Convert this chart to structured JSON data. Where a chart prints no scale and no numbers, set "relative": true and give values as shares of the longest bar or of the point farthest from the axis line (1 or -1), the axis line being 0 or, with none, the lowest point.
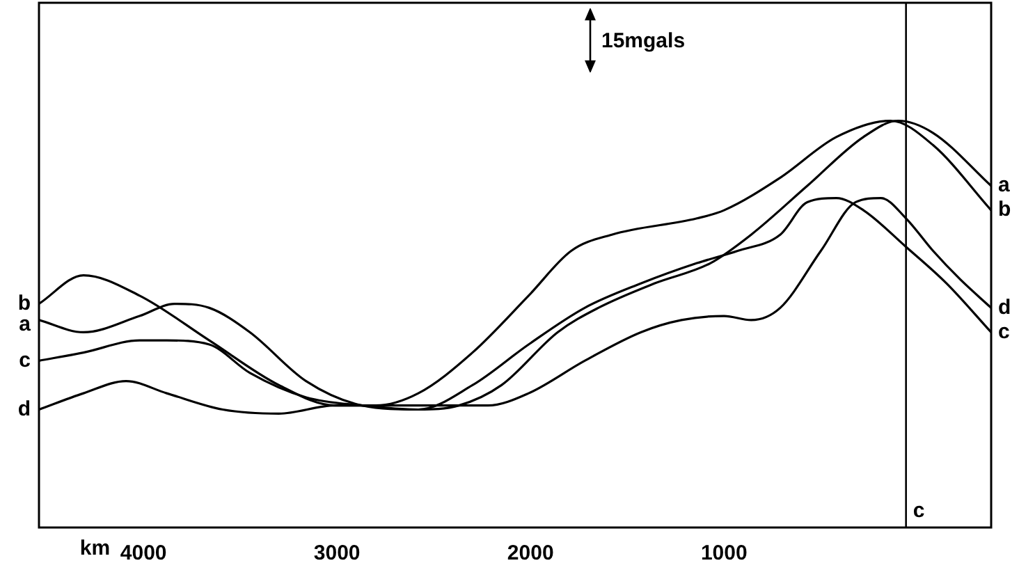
{
  "chart_data": {
    "type": "line",
    "relative": true,
    "xlabel": "km",
    "xlim": [
      4540,
      -380
    ],
    "xticks": [
      4000,
      3000,
      2000,
      1000
    ],
    "grid": false,
    "marker": "none",
    "line_style": "solid",
    "annotations": [
      "15mgals"
    ],
    "ref_lines": [
      {
        "axis": "x",
        "value": 60,
        "label": "c",
        "color": "#000000"
      }
    ],
    "series": [
      {
        "name": "a",
        "color": "#000000",
        "x": [
          4540,
          4310,
          4020,
          3840,
          3660,
          3450,
          3160,
          2870,
          2580,
          2370,
          2150,
          1860,
          1650,
          1360,
          1070,
          860,
          570,
          280,
          100,
          -80,
          -380
        ],
        "values": [
          0.51,
          0.48,
          0.52,
          0.55,
          0.54,
          0.48,
          0.36,
          0.3,
          0.29,
          0.3,
          0.35,
          0.48,
          0.54,
          0.6,
          0.65,
          0.72,
          0.84,
          0.96,
          1.0,
          0.97,
          0.84
        ]
      },
      {
        "name": "b",
        "color": "#000000",
        "x": [
          4540,
          4310,
          4020,
          3660,
          3300,
          3010,
          2800,
          2580,
          2300,
          2010,
          1790,
          1580,
          1140,
          1000,
          710,
          420,
          140,
          -80,
          -380
        ],
        "values": [
          0.55,
          0.62,
          0.57,
          0.46,
          0.35,
          0.3,
          0.3,
          0.33,
          0.43,
          0.57,
          0.68,
          0.72,
          0.76,
          0.78,
          0.86,
          0.96,
          1.0,
          0.94,
          0.78
        ]
      },
      {
        "name": "c",
        "color": "#000000",
        "x": [
          4540,
          4310,
          4020,
          3880,
          3660,
          3450,
          3160,
          2870,
          2580,
          2300,
          2010,
          1720,
          1430,
          1140,
          930,
          710,
          570,
          420,
          280,
          60,
          -150,
          -380
        ],
        "values": [
          0.41,
          0.43,
          0.46,
          0.46,
          0.45,
          0.38,
          0.32,
          0.3,
          0.29,
          0.35,
          0.45,
          0.54,
          0.6,
          0.65,
          0.68,
          0.72,
          0.8,
          0.81,
          0.78,
          0.69,
          0.6,
          0.48
        ]
      },
      {
        "name": "d",
        "color": "#000000",
        "x": [
          4540,
          4310,
          4090,
          3880,
          3590,
          3300,
          3010,
          2730,
          2220,
          2010,
          1720,
          1430,
          1220,
          1000,
          860,
          710,
          500,
          320,
          190,
          60,
          -80,
          -220,
          -380
        ],
        "values": [
          0.29,
          0.33,
          0.36,
          0.33,
          0.29,
          0.28,
          0.3,
          0.3,
          0.3,
          0.33,
          0.41,
          0.48,
          0.51,
          0.52,
          0.51,
          0.54,
          0.68,
          0.8,
          0.81,
          0.76,
          0.68,
          0.61,
          0.54
        ]
      }
    ]
  }
}
